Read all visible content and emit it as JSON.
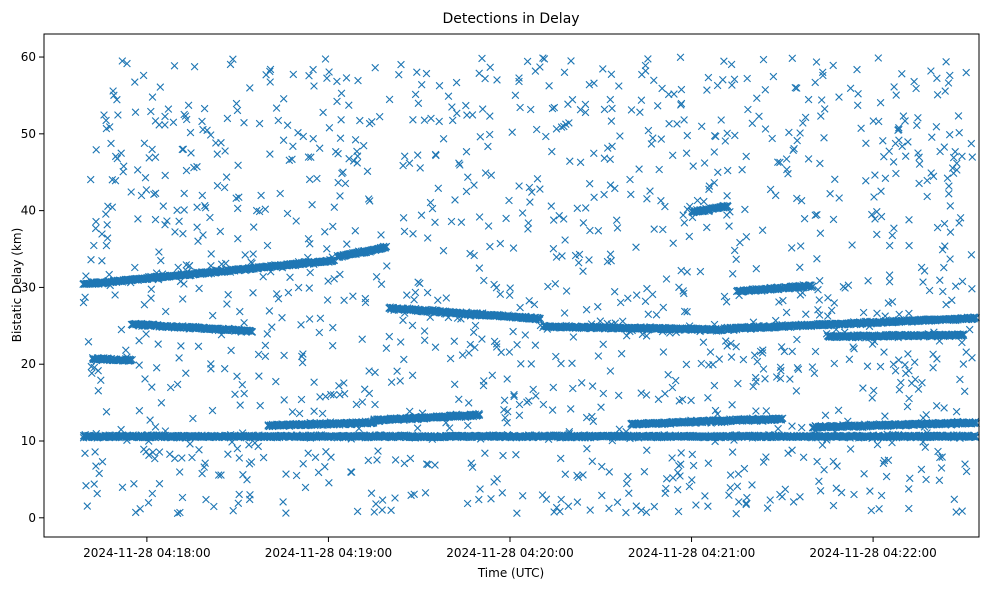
{
  "chart_data": {
    "type": "scatter",
    "title": "Detections in Delay",
    "xlabel": "Time (UTC)",
    "ylabel": "Bistatic Delay (km)",
    "marker": "x",
    "color": "#1f77b4",
    "grid": false,
    "x_type": "time",
    "xlim": [
      "2024-11-28T04:17:26",
      "2024-11-28T04:22:35"
    ],
    "ylim": [
      -2.5,
      63
    ],
    "x_ticks": [
      {
        "value": "2024-11-28T04:18:00",
        "label": "2024-11-28 04:18:00"
      },
      {
        "value": "2024-11-28T04:19:00",
        "label": "2024-11-28 04:19:00"
      },
      {
        "value": "2024-11-28T04:20:00",
        "label": "2024-11-28 04:20:00"
      },
      {
        "value": "2024-11-28T04:21:00",
        "label": "2024-11-28 04:21:00"
      },
      {
        "value": "2024-11-28T04:22:00",
        "label": "2024-11-28 04:22:00"
      }
    ],
    "y_ticks": [
      0,
      10,
      20,
      30,
      40,
      50,
      60
    ],
    "tracks": [
      {
        "start": "2024-11-28T04:17:39",
        "end": "2024-11-28T04:19:02",
        "delay_start": 30.4,
        "delay_end": 33.5
      },
      {
        "start": "2024-11-28T04:19:03",
        "end": "2024-11-28T04:19:19",
        "delay_start": 34.0,
        "delay_end": 35.2
      },
      {
        "start": "2024-11-28T04:19:20",
        "end": "2024-11-28T04:20:10",
        "delay_start": 27.3,
        "delay_end": 25.9
      },
      {
        "start": "2024-11-28T04:20:11",
        "end": "2024-11-28T04:21:10",
        "delay_start": 24.9,
        "delay_end": 24.5
      },
      {
        "start": "2024-11-28T04:21:11",
        "end": "2024-11-28T04:22:34",
        "delay_start": 24.6,
        "delay_end": 26.0
      },
      {
        "start": "2024-11-28T04:17:39",
        "end": "2024-11-28T04:22:34",
        "delay_start": 10.6,
        "delay_end": 10.6
      },
      {
        "start": "2024-11-28T04:17:55",
        "end": "2024-11-28T04:18:35",
        "delay_start": 25.2,
        "delay_end": 24.3
      },
      {
        "start": "2024-11-28T04:18:40",
        "end": "2024-11-28T04:19:15",
        "delay_start": 12.0,
        "delay_end": 12.4
      },
      {
        "start": "2024-11-28T04:19:15",
        "end": "2024-11-28T04:19:50",
        "delay_start": 12.7,
        "delay_end": 13.4
      },
      {
        "start": "2024-11-28T04:20:40",
        "end": "2024-11-28T04:21:30",
        "delay_start": 12.2,
        "delay_end": 12.9
      },
      {
        "start": "2024-11-28T04:21:40",
        "end": "2024-11-28T04:22:34",
        "delay_start": 11.8,
        "delay_end": 12.4
      },
      {
        "start": "2024-11-28T04:21:00",
        "end": "2024-11-28T04:21:12",
        "delay_start": 39.8,
        "delay_end": 40.6
      },
      {
        "start": "2024-11-28T04:21:15",
        "end": "2024-11-28T04:21:40",
        "delay_start": 29.5,
        "delay_end": 30.2
      },
      {
        "start": "2024-11-28T04:21:45",
        "end": "2024-11-28T04:22:30",
        "delay_start": 23.6,
        "delay_end": 23.8
      },
      {
        "start": "2024-11-28T04:17:42",
        "end": "2024-11-28T04:17:55",
        "delay_start": 20.7,
        "delay_end": 20.5
      }
    ],
    "track_points_per_second": 6,
    "background_points": {
      "count": 1300,
      "x_range": [
        "2024-11-28T04:17:39",
        "2024-11-28T04:22:34"
      ],
      "y_range": [
        0.5,
        60
      ],
      "distribution": "uniform scatter"
    }
  }
}
